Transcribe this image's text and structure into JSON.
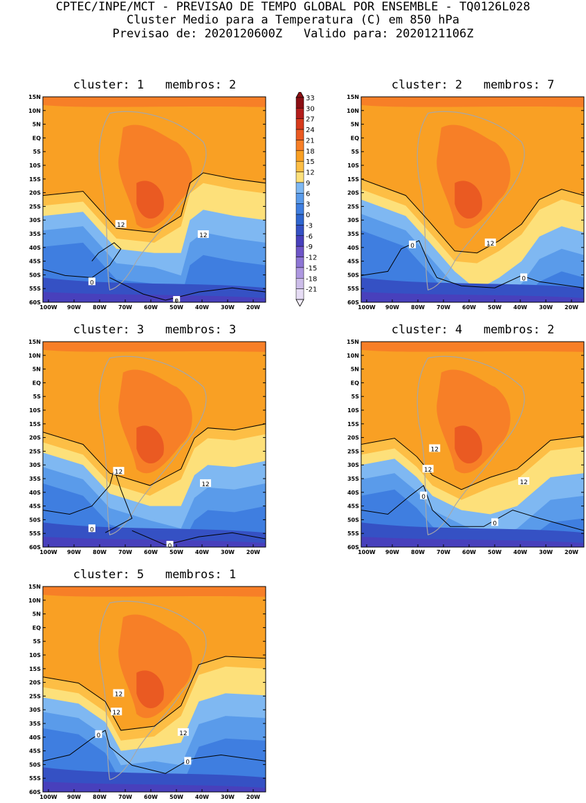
{
  "header": {
    "line1": "CPTEC/INPE/MCT - PREVISAO DE TEMPO GLOBAL POR ENSEMBLE - TQ0126L028",
    "line2": "Cluster Medio para a Temperatura (C) em 850 hPa",
    "line3": "Previsao de: 2020120600Z   Valido para: 2020121106Z"
  },
  "latitude_labels": [
    "15N",
    "10N",
    "5N",
    "EQ",
    "5S",
    "10S",
    "15S",
    "20S",
    "25S",
    "30S",
    "35S",
    "40S",
    "45S",
    "50S",
    "55S",
    "60S"
  ],
  "longitude_labels": [
    "100W",
    "90W",
    "80W",
    "70W",
    "60W",
    "50W",
    "40W",
    "30W",
    "20W"
  ],
  "colorbar": {
    "levels": [
      "33",
      "30",
      "27",
      "24",
      "21",
      "18",
      "15",
      "12",
      "9",
      "6",
      "3",
      "0",
      "-3",
      "-6",
      "-9",
      "-12",
      "-15",
      "-18",
      "-21"
    ],
    "colors": [
      "#8b0f14",
      "#b31e1c",
      "#d63a1c",
      "#ea5a22",
      "#f77f27",
      "#f9a024",
      "#fdbe45",
      "#fde07a",
      "#7fb8f2",
      "#5a9bea",
      "#3f7ee0",
      "#2f66cf",
      "#3551c4",
      "#4840bc",
      "#6e55c7",
      "#8d75d4",
      "#ad97e0",
      "#ccbde9",
      "#e6dcf4"
    ]
  },
  "clusters": [
    {
      "title": "cluster: 1   membros: 2",
      "contour_labels": [
        "12",
        "12",
        "0",
        "0"
      ]
    },
    {
      "title": "cluster: 2   membros: 7",
      "contour_labels": [
        "0",
        "12",
        "0"
      ]
    },
    {
      "title": "cluster: 3   membros: 3",
      "contour_labels": [
        "12",
        "12",
        "0",
        "0"
      ]
    },
    {
      "title": "cluster: 4   membros: 2",
      "contour_labels": [
        "12",
        "12",
        "12",
        "0",
        "0"
      ]
    },
    {
      "title": "cluster: 5   membros: 1",
      "contour_labels": [
        "12",
        "12",
        "12",
        "0",
        "0"
      ]
    }
  ]
}
